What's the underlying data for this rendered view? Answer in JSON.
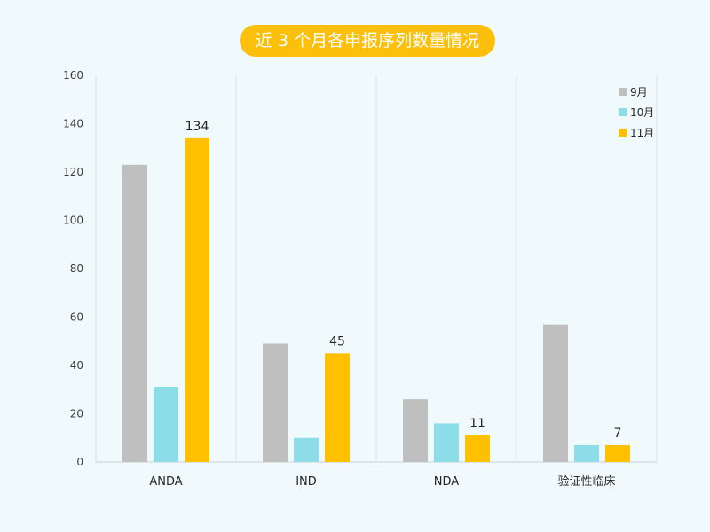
{
  "chart_data": {
    "type": "bar",
    "title": "近 3 个月各申报序列数量情况",
    "categories": [
      "ANDA",
      "IND",
      "NDA",
      "验证性临床"
    ],
    "series": [
      {
        "name": "9月",
        "color": "#bfbfbf",
        "values": [
          123,
          49,
          26,
          57
        ]
      },
      {
        "name": "10月",
        "color": "#8ddde8",
        "values": [
          31,
          10,
          16,
          7
        ]
      },
      {
        "name": "11月",
        "color": "#ffc000",
        "values": [
          134,
          45,
          11,
          7
        ]
      }
    ],
    "data_labels_series": "11月",
    "ylim": [
      0,
      160
    ],
    "yticks": [
      0,
      20,
      40,
      60,
      80,
      100,
      120,
      140,
      160
    ],
    "grid": "vertical category separators",
    "legend_position": "top-right"
  }
}
